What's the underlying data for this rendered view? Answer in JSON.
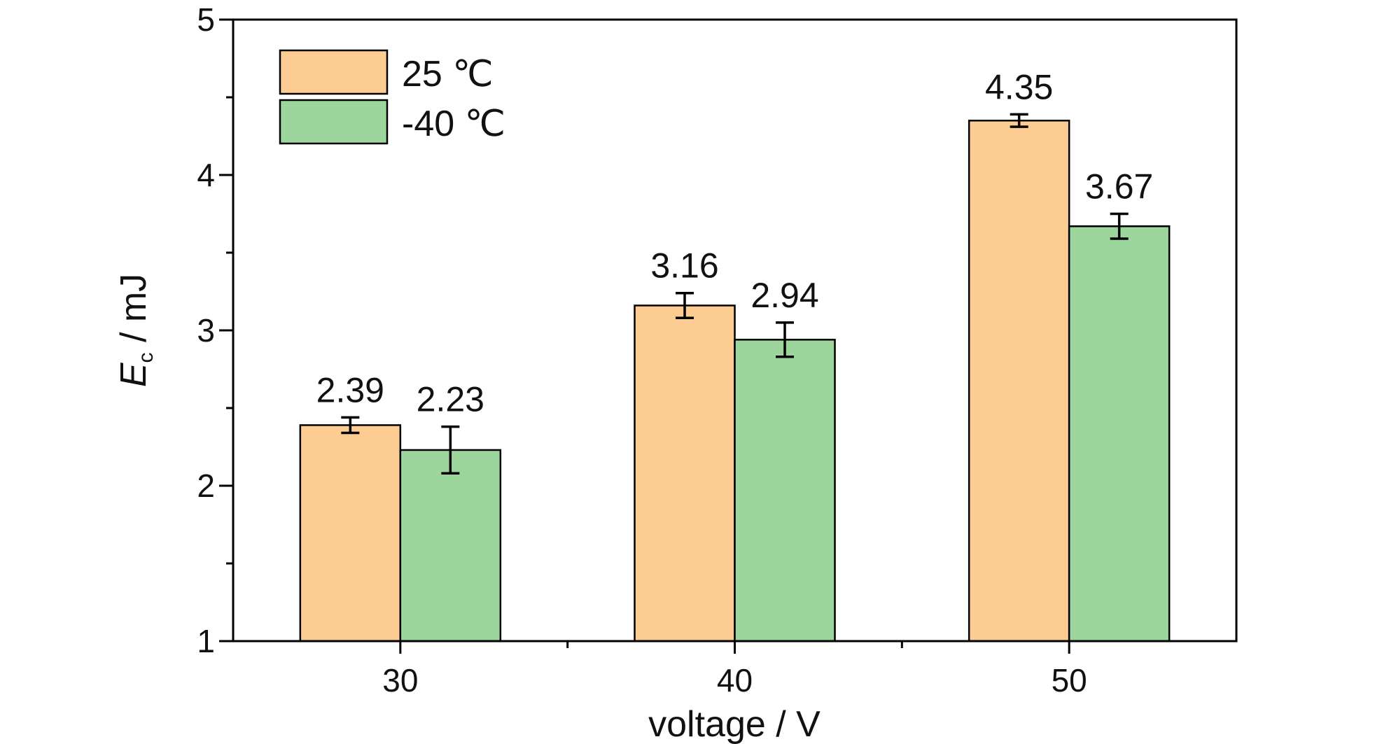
{
  "chart_data": {
    "type": "bar",
    "categories": [
      "30",
      "40",
      "50"
    ],
    "xlabel": "voltage / V",
    "ylabel_main": "E",
    "ylabel_sub": "c",
    "ylabel_unit": " / mJ",
    "ylim": [
      1,
      5
    ],
    "yticks": [
      1,
      2,
      3,
      4,
      5
    ],
    "grid": false,
    "legend_position": "top-left",
    "series": [
      {
        "name": "25 ℃",
        "color": "#FCCC92",
        "values": [
          2.39,
          3.16,
          4.35
        ],
        "errors": [
          0.05,
          0.08,
          0.04
        ],
        "labels": [
          "2.39",
          "3.16",
          "4.35"
        ]
      },
      {
        "name": "-40 ℃",
        "color": "#9DD69D",
        "values": [
          2.23,
          2.94,
          3.67
        ],
        "errors": [
          0.15,
          0.11,
          0.08
        ],
        "labels": [
          "2.23",
          "2.94",
          "3.67"
        ]
      }
    ]
  }
}
